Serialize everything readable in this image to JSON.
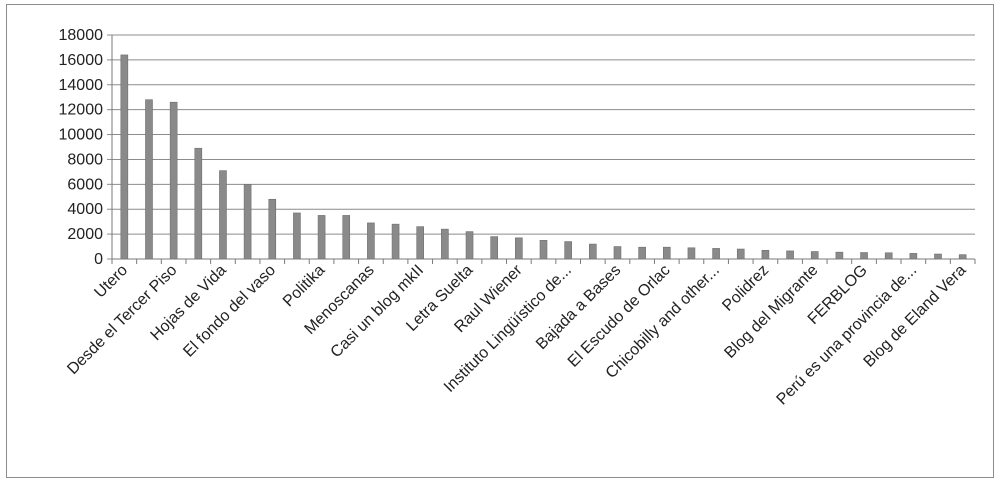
{
  "chart_data": {
    "type": "bar",
    "title": "",
    "xlabel": "",
    "ylabel": "",
    "ylim": [
      0,
      18000
    ],
    "yticks": [
      0,
      2000,
      4000,
      6000,
      8000,
      10000,
      12000,
      14000,
      16000,
      18000
    ],
    "grid": "horizontal",
    "legend": "none",
    "bar_color": "#8a8a8a",
    "grid_color": "#8c8c8c",
    "values": [
      16400,
      12800,
      12600,
      8900,
      7100,
      6000,
      4800,
      3700,
      3500,
      3500,
      2900,
      2800,
      2600,
      2400,
      2200,
      1800,
      1700,
      1500,
      1400,
      1200,
      1000,
      950,
      950,
      900,
      850,
      800,
      700,
      650,
      600,
      550,
      520,
      500,
      450,
      400,
      350
    ],
    "labeled_categories": [
      {
        "index": 0,
        "label": "Utero"
      },
      {
        "index": 2,
        "label": "Desde el Tercer Piso"
      },
      {
        "index": 4,
        "label": "Hojas de Vida"
      },
      {
        "index": 6,
        "label": "El fondo del vaso"
      },
      {
        "index": 8,
        "label": "Politika"
      },
      {
        "index": 10,
        "label": "Menoscanas"
      },
      {
        "index": 12,
        "label": "Casi un blog mkII"
      },
      {
        "index": 14,
        "label": "Letra Suelta"
      },
      {
        "index": 16,
        "label": "Raul Wiener"
      },
      {
        "index": 18,
        "label": "Instituto Lingüístico de..."
      },
      {
        "index": 20,
        "label": "Bajada a Bases"
      },
      {
        "index": 22,
        "label": "El Escudo de Orlac"
      },
      {
        "index": 24,
        "label": "Chicobilly and other..."
      },
      {
        "index": 26,
        "label": "Polidrez"
      },
      {
        "index": 28,
        "label": "Blog del Migrante"
      },
      {
        "index": 30,
        "label": "FERBLOG"
      },
      {
        "index": 32,
        "label": "Perú es una provincia de..."
      },
      {
        "index": 34,
        "label": "Blog de Eland Vera"
      }
    ]
  }
}
